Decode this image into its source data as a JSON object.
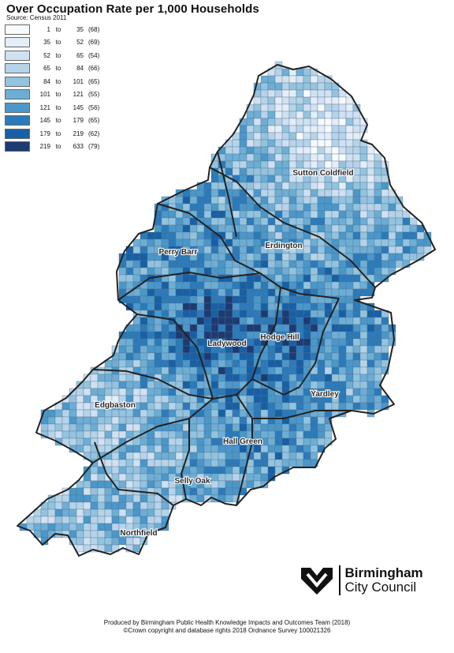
{
  "title": "Over Occupation Rate per 1,000 Households",
  "source": "Source: Census 2011",
  "legend": [
    {
      "from": "1",
      "to": "35",
      "count": "(68)",
      "color": "#f7fbff"
    },
    {
      "from": "35",
      "to": "52",
      "count": "(69)",
      "color": "#e4eef8"
    },
    {
      "from": "52",
      "to": "65",
      "count": "(54)",
      "color": "#cfe1f2"
    },
    {
      "from": "65",
      "to": "84",
      "count": "(66)",
      "color": "#b5d4e9"
    },
    {
      "from": "84",
      "to": "101",
      "count": "(65)",
      "color": "#93c4df"
    },
    {
      "from": "101",
      "to": "121",
      "count": "(55)",
      "color": "#6daed5"
    },
    {
      "from": "121",
      "to": "145",
      "count": "(56)",
      "color": "#4a97c9"
    },
    {
      "from": "145",
      "to": "179",
      "count": "(65)",
      "color": "#2b7bba"
    },
    {
      "from": "179",
      "to": "219",
      "count": "(62)",
      "color": "#1760a5"
    },
    {
      "from": "219",
      "to": "633",
      "count": "(79)",
      "color": "#1c3b73"
    }
  ],
  "legend_to_word": "to",
  "districts": [
    {
      "name": "Sutton Coldfield",
      "level": 1
    },
    {
      "name": "Erdington",
      "level": 5
    },
    {
      "name": "Perry Barr",
      "level": 6
    },
    {
      "name": "Ladywood",
      "level": 9
    },
    {
      "name": "Hodge Hill",
      "level": 8
    },
    {
      "name": "Yardley",
      "level": 5
    },
    {
      "name": "Edgbaston",
      "level": 3
    },
    {
      "name": "Hall Green",
      "level": 6
    },
    {
      "name": "Selly Oak",
      "level": 4
    },
    {
      "name": "Northfield",
      "level": 4
    }
  ],
  "logo": {
    "line1": "Birmingham",
    "line2": "City Council"
  },
  "credits": {
    "line1": "Produced by Birmingham Public Health Knowledge Impacts and Outcomes Team (2018)",
    "line2": "©Crown copyright and database rights 2018 Ordnance Survey 100021326"
  }
}
